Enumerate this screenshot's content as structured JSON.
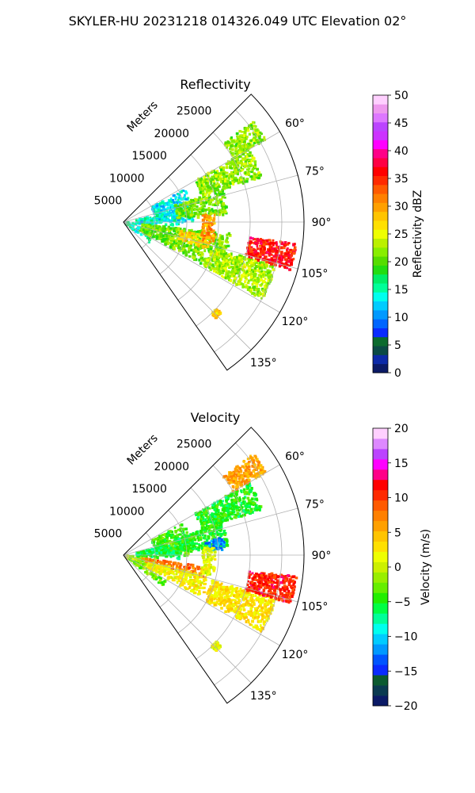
{
  "figure": {
    "title": "SKYLER-HU  20231218  014326.049 UTC Elevation 02°"
  },
  "chart_data": [
    {
      "type": "heatmap",
      "subtype": "polar-sector (radar PPI)",
      "title": "Reflectivity",
      "radial_label": "Meters",
      "radial_ticks": [
        "5000",
        "10000",
        "15000",
        "20000",
        "25000"
      ],
      "radial_tick_values": [
        5000,
        10000,
        15000,
        20000,
        25000
      ],
      "angle_ticks": [
        "60°",
        "75°",
        "90°",
        "105°",
        "120°",
        "135°"
      ],
      "angle_tick_values": [
        60,
        75,
        90,
        105,
        120,
        135
      ],
      "angle_range_deg": [
        45,
        145
      ],
      "range_max_m": 28500,
      "grid": true,
      "colorbar": {
        "label": "Reflectivity dBZ",
        "ticks": [
          "0",
          "5",
          "10",
          "15",
          "20",
          "25",
          "30",
          "35",
          "40",
          "45",
          "50"
        ],
        "range": [
          0,
          50
        ],
        "colors": [
          "#0b1a66",
          "#0c2aa8",
          "#0a4a45",
          "#0b6b2e",
          "#0a2bff",
          "#0066ff",
          "#0099ff",
          "#00ccff",
          "#00ffee",
          "#00ff99",
          "#00ee66",
          "#22dd11",
          "#55dd00",
          "#88ee00",
          "#bbf000",
          "#eeff00",
          "#ffe000",
          "#ffc400",
          "#ffa000",
          "#ff8000",
          "#ff5a00",
          "#ff2a00",
          "#ff0000",
          "#ff0044",
          "#ff0088",
          "#ff00ff",
          "#cc33ff",
          "#bb44ff",
          "#dd77ff",
          "#ee99ee",
          "#ffd0ff"
        ]
      },
      "echo_regions": [
        {
          "az": [
            95,
            128
          ],
          "r": [
            300,
            5200
          ],
          "dbz": 15
        },
        {
          "az": [
            62,
            90
          ],
          "r": [
            5000,
            11000
          ],
          "dbz": 13
        },
        {
          "az": [
            78,
            94
          ],
          "r": [
            2000,
            9000
          ],
          "dbz": 14
        },
        {
          "az": [
            72,
            86
          ],
          "r": [
            8500,
            16500
          ],
          "dbz": 21
        },
        {
          "az": [
            60,
            72
          ],
          "r": [
            13000,
            23000
          ],
          "dbz": 22
        },
        {
          "az": [
            52,
            60
          ],
          "r": [
            20000,
            26000
          ],
          "dbz": 22
        },
        {
          "az": [
            96,
            118
          ],
          "r": [
            3000,
            17000
          ],
          "dbz": 21
        },
        {
          "az": [
            99,
            108
          ],
          "r": [
            9000,
            14000
          ],
          "dbz": 27
        },
        {
          "az": [
            106,
            119
          ],
          "r": [
            14500,
            25000
          ],
          "dbz": 23
        },
        {
          "az": [
            97,
            106
          ],
          "r": [
            20000,
            27500
          ],
          "dbz": 36
        },
        {
          "az": [
            85,
            103
          ],
          "r": [
            12500,
            14500
          ],
          "dbz": 30
        },
        {
          "az": [
            133,
            136
          ],
          "r": [
            20000,
            21000
          ],
          "dbz": 28
        }
      ]
    },
    {
      "type": "heatmap",
      "subtype": "polar-sector (radar PPI)",
      "title": "Velocity",
      "radial_label": "Meters",
      "radial_ticks": [
        "5000",
        "10000",
        "15000",
        "20000",
        "25000"
      ],
      "radial_tick_values": [
        5000,
        10000,
        15000,
        20000,
        25000
      ],
      "angle_ticks": [
        "60°",
        "75°",
        "90°",
        "105°",
        "120°",
        "135°"
      ],
      "angle_tick_values": [
        60,
        75,
        90,
        105,
        120,
        135
      ],
      "angle_range_deg": [
        45,
        145
      ],
      "range_max_m": 28500,
      "grid": true,
      "colorbar": {
        "label": "Velocity (m/s)",
        "ticks": [
          "−20",
          "−15",
          "−10",
          "−5",
          "0",
          "5",
          "10",
          "15",
          "20"
        ],
        "range": [
          -20,
          20
        ],
        "colors": [
          "#0b1a66",
          "#0a3a50",
          "#0b5a30",
          "#0a2bff",
          "#0055ff",
          "#0099ff",
          "#00ccff",
          "#00ffee",
          "#00ff99",
          "#00ff44",
          "#22ee00",
          "#66ee00",
          "#99ee00",
          "#ccf000",
          "#eeff00",
          "#ffe000",
          "#ffc400",
          "#ffa000",
          "#ff8000",
          "#ff5a00",
          "#ff2a00",
          "#ff0000",
          "#ff0088",
          "#ff00ff",
          "#bb44ff",
          "#dd88ff",
          "#ffd0ff"
        ]
      },
      "echo_regions": [
        {
          "az": [
            95,
            128
          ],
          "r": [
            300,
            5200
          ],
          "vel": -1
        },
        {
          "az": [
            62,
            90
          ],
          "r": [
            5000,
            11000
          ],
          "vel": -4
        },
        {
          "az": [
            78,
            94
          ],
          "r": [
            2000,
            9000
          ],
          "vel": -6
        },
        {
          "az": [
            72,
            86
          ],
          "r": [
            8500,
            16500
          ],
          "vel": -5
        },
        {
          "az": [
            80,
            87
          ],
          "r": [
            13000,
            16000
          ],
          "vel": -12
        },
        {
          "az": [
            60,
            72
          ],
          "r": [
            13000,
            23000
          ],
          "vel": -5
        },
        {
          "az": [
            52,
            60
          ],
          "r": [
            20000,
            26000
          ],
          "vel": 6
        },
        {
          "az": [
            98,
            106
          ],
          "r": [
            3000,
            13000
          ],
          "vel": 8
        },
        {
          "az": [
            104,
            118
          ],
          "r": [
            4000,
            14000
          ],
          "vel": 2
        },
        {
          "az": [
            106,
            119
          ],
          "r": [
            14500,
            25000
          ],
          "vel": 3
        },
        {
          "az": [
            97,
            106
          ],
          "r": [
            20000,
            27500
          ],
          "vel": 11
        },
        {
          "az": [
            85,
            103
          ],
          "r": [
            12500,
            14500
          ],
          "vel": 1
        },
        {
          "az": [
            120,
            128
          ],
          "r": [
            1000,
            8000
          ],
          "vel": -3
        },
        {
          "az": [
            133,
            136
          ],
          "r": [
            20000,
            21000
          ],
          "vel": 1
        }
      ]
    }
  ]
}
